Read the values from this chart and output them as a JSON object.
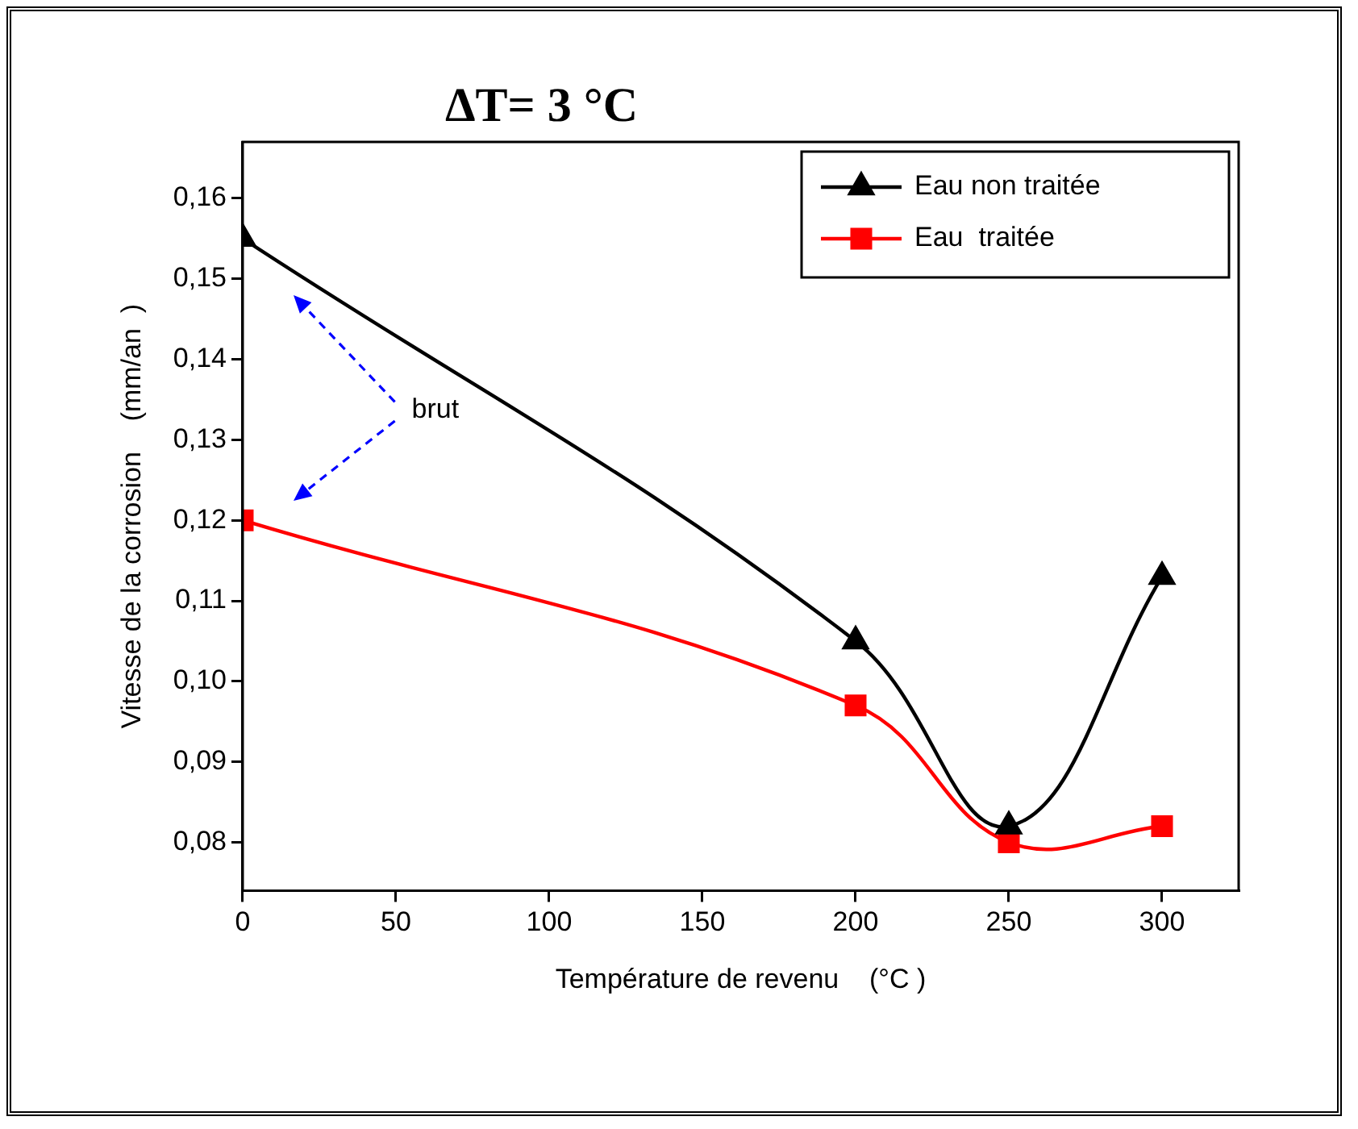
{
  "chart_data": {
    "type": "line",
    "title": "ΔT= 3 °C",
    "xlabel": "Température de revenu    (°C )",
    "ylabel": "Vitesse de la corrosion    (mm/an  )",
    "x": [
      0,
      200,
      250,
      300
    ],
    "series": [
      {
        "name": "Eau non traitée",
        "color": "#000000",
        "marker": "triangle",
        "values": [
          0.155,
          0.105,
          0.082,
          0.113
        ]
      },
      {
        "name": "Eau  traitée",
        "color": "#ff0000",
        "marker": "square",
        "values": [
          0.12,
          0.097,
          0.08,
          0.082
        ]
      }
    ],
    "xlim": [
      0,
      325
    ],
    "xticks": [
      0,
      50,
      100,
      150,
      200,
      250,
      300
    ],
    "ylim": [
      0.074,
      0.167
    ],
    "yticks": [
      {
        "value": 0.08,
        "label": "0,08"
      },
      {
        "value": 0.09,
        "label": "0,09"
      },
      {
        "value": 0.1,
        "label": "0,10"
      },
      {
        "value": 0.11,
        "label": "0,11"
      },
      {
        "value": 0.12,
        "label": "0,12"
      },
      {
        "value": 0.13,
        "label": "0,13"
      },
      {
        "value": 0.14,
        "label": "0,14"
      },
      {
        "value": 0.15,
        "label": "0,15"
      },
      {
        "value": 0.16,
        "label": "0,16"
      }
    ],
    "annotations": [
      "brut"
    ],
    "legend": "top right",
    "grid": false,
    "line_style": "solid"
  }
}
